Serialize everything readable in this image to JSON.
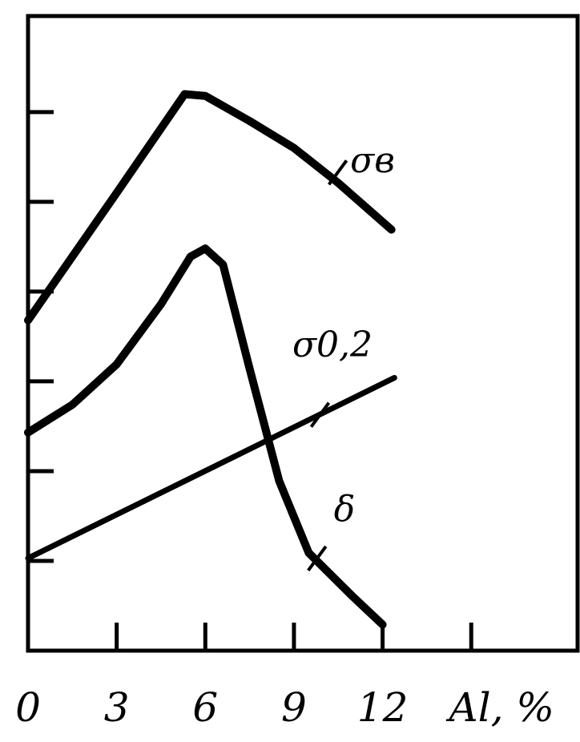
{
  "chart_data": {
    "type": "line",
    "xlim": [
      0,
      18.6
    ],
    "ylim": [
      0,
      7.07
    ],
    "xticks": [
      0,
      3,
      6,
      9,
      12,
      {
        "value": 15,
        "label": "Al, %"
      }
    ],
    "yticks": [
      1,
      2,
      3,
      4,
      5,
      6
    ],
    "series": [
      {
        "name": "σв",
        "color": "#000000",
        "x": [
          0,
          3,
          5.3,
          6,
          7.5,
          9,
          10.5,
          12.3
        ],
        "values": [
          3.68,
          5.1,
          6.2,
          6.18,
          5.9,
          5.6,
          5.21,
          4.69
        ]
      },
      {
        "name": "σ0,2",
        "color": "#000000",
        "x": [
          0,
          12.4
        ],
        "values": [
          1.03,
          3.04
        ]
      },
      {
        "name": "δ",
        "color": "#000000",
        "x": [
          0,
          1.5,
          3,
          4.5,
          5.5,
          6,
          6.6,
          7.5,
          8.5,
          9.5,
          11,
          12
        ],
        "values": [
          2.43,
          2.74,
          3.19,
          3.86,
          4.39,
          4.48,
          4.3,
          3.14,
          1.89,
          1.09,
          0.6,
          0.29
        ]
      }
    ]
  }
}
